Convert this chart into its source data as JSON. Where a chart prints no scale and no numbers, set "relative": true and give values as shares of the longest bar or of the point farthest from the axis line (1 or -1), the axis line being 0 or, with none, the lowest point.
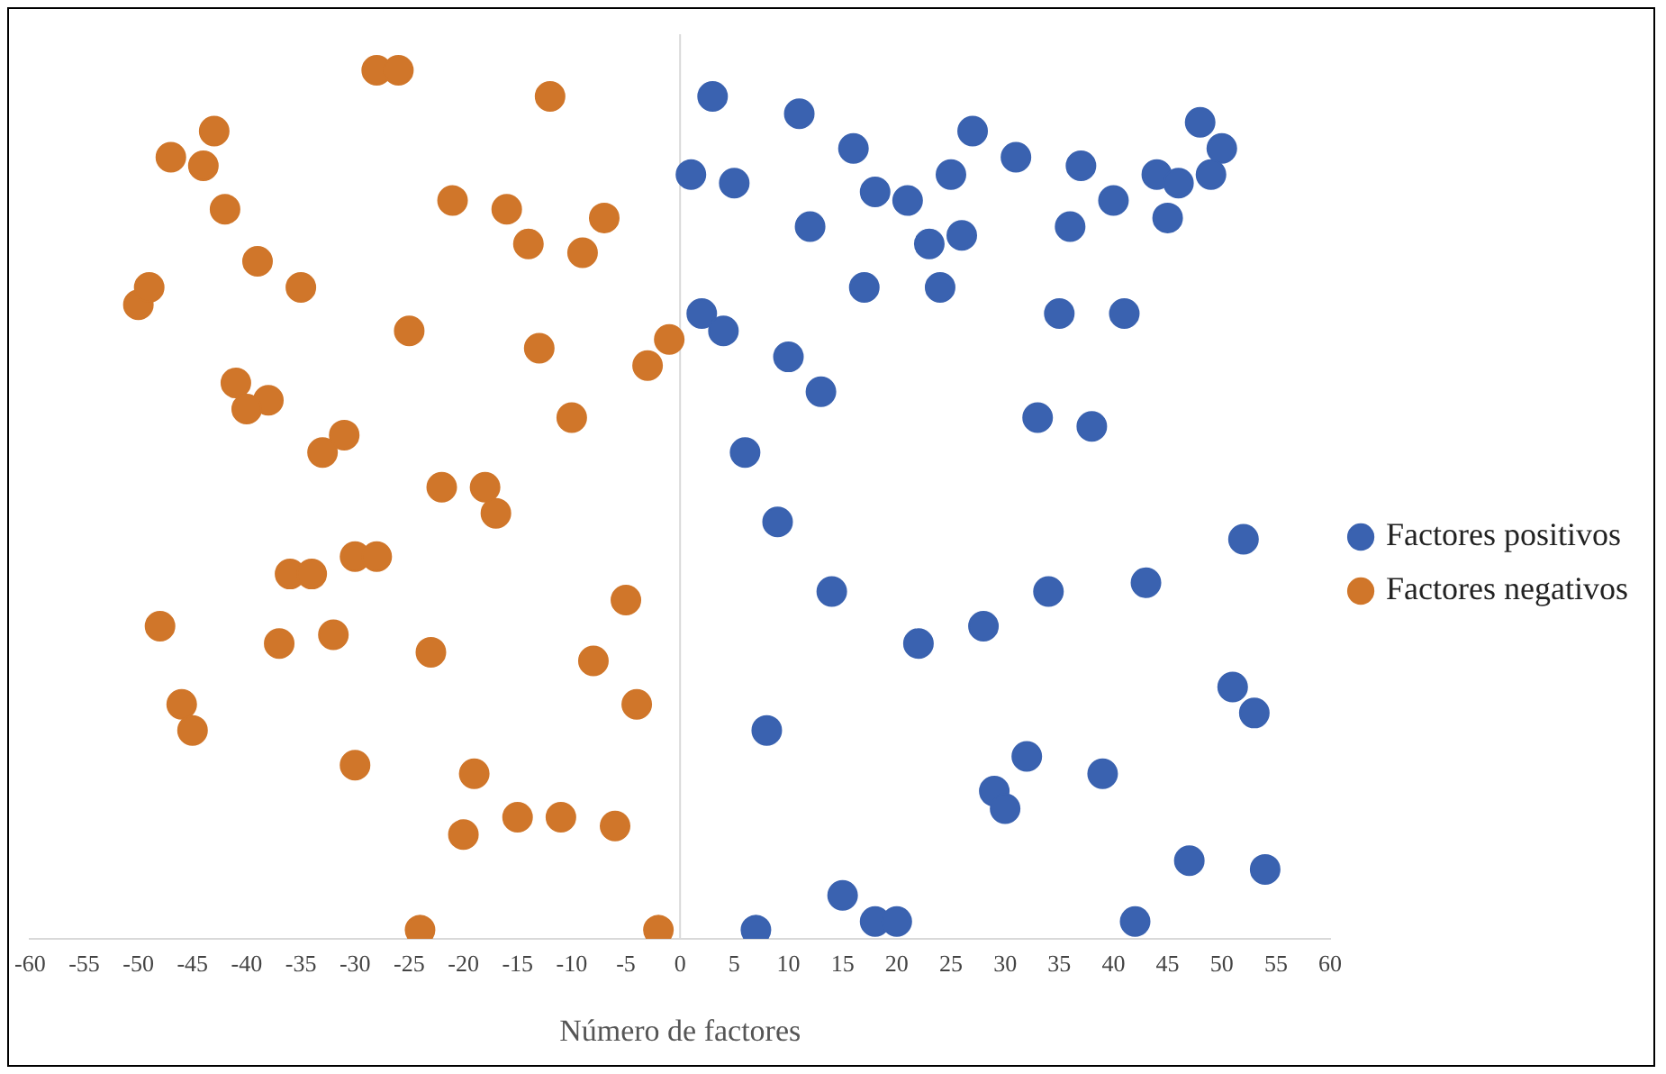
{
  "chart_data": {
    "type": "scatter",
    "xlabel": "Número de factores",
    "xlim": [
      -60,
      60
    ],
    "xticks": [
      -60,
      -55,
      -50,
      -45,
      -40,
      -35,
      -30,
      -25,
      -20,
      -15,
      -10,
      -5,
      0,
      5,
      10,
      15,
      20,
      25,
      30,
      35,
      40,
      45,
      50,
      55,
      60
    ],
    "relative": true,
    "tick_labels": "x",
    "legend": "right",
    "marker": "circle",
    "series": [
      {
        "name": "Factores positivos",
        "color": "#3a62b0",
        "x": [
          3,
          11,
          16,
          27,
          31,
          37,
          48,
          50,
          44,
          46,
          49,
          1,
          5,
          18,
          21,
          25,
          40,
          12,
          23,
          26,
          36,
          45,
          17,
          24,
          35,
          41,
          2,
          4,
          10,
          13,
          33,
          38,
          6,
          9,
          52,
          14,
          34,
          43,
          22,
          28,
          51,
          53,
          8,
          32,
          39,
          29,
          30,
          47,
          54,
          15,
          18,
          20,
          7,
          42
        ],
        "values": [
          0.97,
          0.95,
          0.91,
          0.93,
          0.9,
          0.89,
          0.94,
          0.91,
          0.88,
          0.87,
          0.88,
          0.88,
          0.87,
          0.86,
          0.85,
          0.88,
          0.85,
          0.82,
          0.8,
          0.81,
          0.82,
          0.83,
          0.75,
          0.75,
          0.72,
          0.72,
          0.72,
          0.7,
          0.67,
          0.63,
          0.6,
          0.59,
          0.56,
          0.48,
          0.46,
          0.4,
          0.4,
          0.41,
          0.34,
          0.36,
          0.29,
          0.26,
          0.24,
          0.21,
          0.19,
          0.17,
          0.15,
          0.09,
          0.08,
          0.05,
          0.02,
          0.02,
          0.01,
          0.02
        ]
      },
      {
        "name": "Factores negativos",
        "color": "#d0762a",
        "x": [
          -28,
          -26,
          -12,
          -43,
          -47,
          -44,
          -42,
          -21,
          -16,
          -7,
          -14,
          -9,
          -39,
          -35,
          -50,
          -49,
          -25,
          -13,
          -3,
          -1,
          -41,
          -38,
          -40,
          -31,
          -33,
          -10,
          -22,
          -18,
          -17,
          -30,
          -28,
          -36,
          -34,
          -5,
          -48,
          -37,
          -32,
          -23,
          -8,
          -4,
          -46,
          -45,
          -30,
          -19,
          -15,
          -11,
          -6,
          -20,
          -24,
          -2
        ],
        "values": [
          1.0,
          1.0,
          0.97,
          0.93,
          0.9,
          0.89,
          0.84,
          0.85,
          0.84,
          0.83,
          0.8,
          0.79,
          0.78,
          0.75,
          0.73,
          0.75,
          0.7,
          0.68,
          0.66,
          0.69,
          0.64,
          0.62,
          0.61,
          0.58,
          0.56,
          0.6,
          0.52,
          0.52,
          0.49,
          0.44,
          0.44,
          0.42,
          0.42,
          0.39,
          0.36,
          0.34,
          0.35,
          0.33,
          0.32,
          0.27,
          0.27,
          0.24,
          0.2,
          0.19,
          0.14,
          0.14,
          0.13,
          0.12,
          0.01,
          0.01
        ]
      }
    ]
  }
}
